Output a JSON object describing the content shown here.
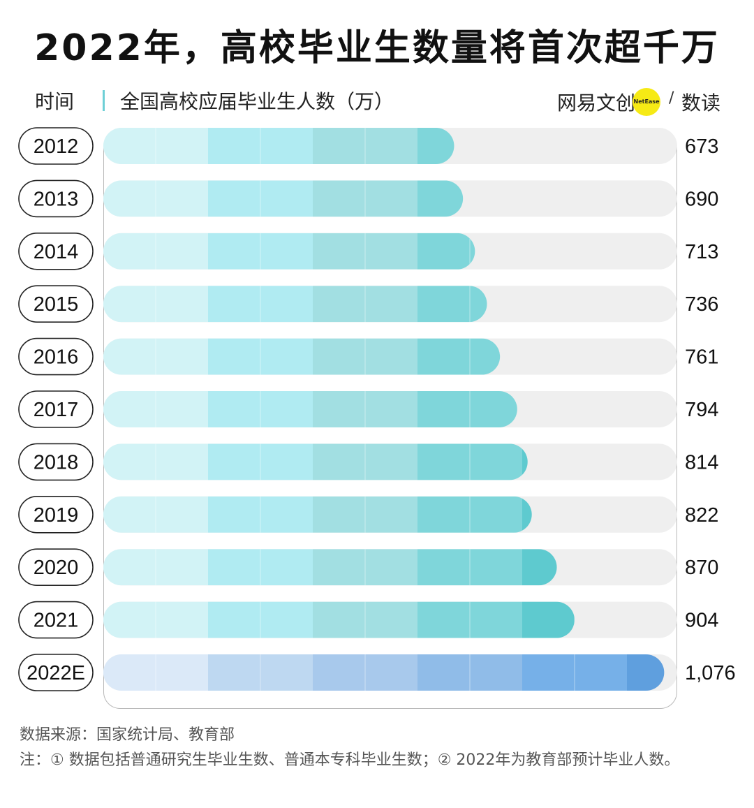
{
  "title": "2022年，高校毕业生数量将首次超千万",
  "header": {
    "time_label": "时间",
    "metric_label": "全国高校应届毕业生人数（万）"
  },
  "logo": {
    "brand_cn": "网易文创",
    "badge_text": "NetEase",
    "slash": "/",
    "product_cn": "数读"
  },
  "colors": {
    "track": "#efefef",
    "actual_segments": [
      "#d2f3f6",
      "#b0ebf2",
      "#a2dfe2",
      "#7fd6da",
      "#5ecacf",
      "#45bfc5"
    ],
    "estimate_segments": [
      "#dbe9f8",
      "#bed8f1",
      "#a8c9ec",
      "#90bce8",
      "#76b0e8",
      "#5f9fde"
    ],
    "pill_border": "#222222"
  },
  "chart_data": {
    "type": "bar",
    "orientation": "horizontal",
    "title": "2022年，高校毕业生数量将首次超千万",
    "xlabel": "全国高校应届毕业生人数（万）",
    "ylabel": "时间",
    "xlim": [
      0,
      1100
    ],
    "categories": [
      "2012",
      "2013",
      "2014",
      "2015",
      "2016",
      "2017",
      "2018",
      "2019",
      "2020",
      "2021",
      "2022E"
    ],
    "values": [
      673,
      690,
      713,
      736,
      761,
      794,
      814,
      822,
      870,
      904,
      1076
    ],
    "value_labels": [
      "673",
      "690",
      "713",
      "736",
      "761",
      "794",
      "814",
      "822",
      "870",
      "904",
      "1,076"
    ],
    "estimated": [
      false,
      false,
      false,
      false,
      false,
      false,
      false,
      false,
      false,
      false,
      true
    ]
  },
  "footer": {
    "source": "数据来源：国家统计局、教育部",
    "note": "注：① 数据包括普通研究生毕业生数、普通本专科毕业生数；② 2022年为教育部预计毕业人数。"
  }
}
